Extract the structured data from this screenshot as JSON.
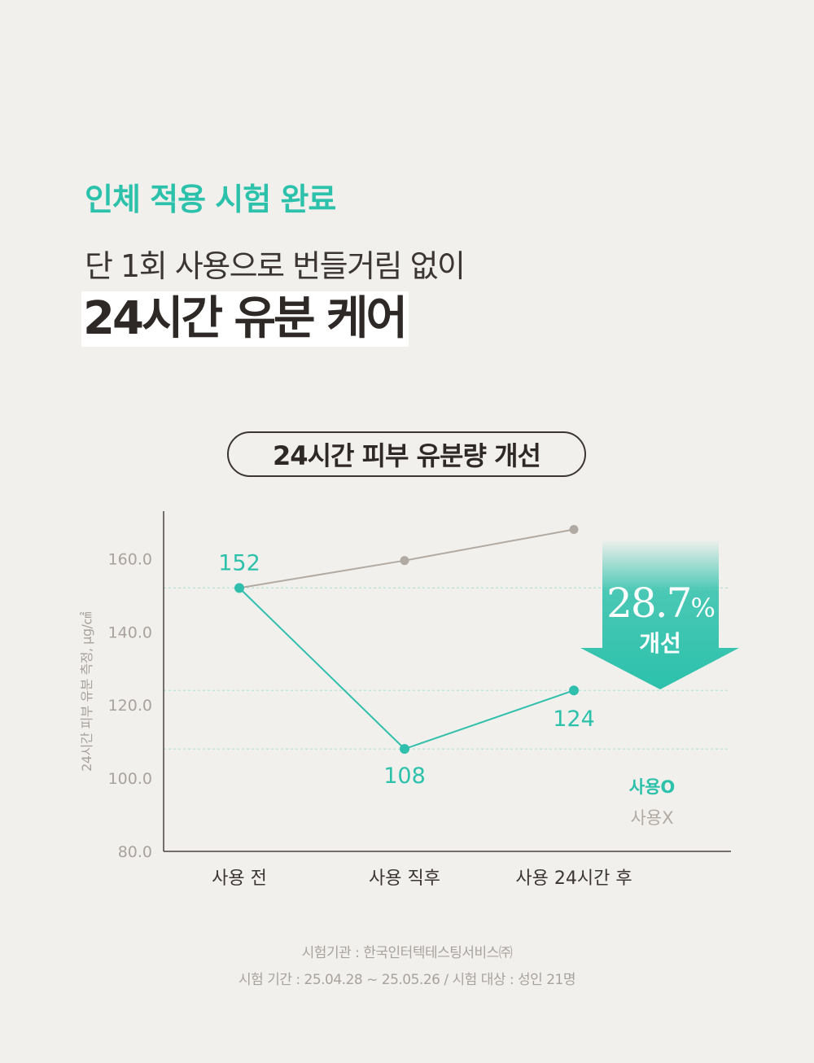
{
  "header": {
    "eyebrow": "인체 적용 시험 완료",
    "subtitle": "단 1회 사용으로 번들거림 없이",
    "headline": "24시간 유분 케어"
  },
  "chart_title": "24시간 피부 유분량 개선",
  "colors": {
    "accent": "#2cc1ab",
    "line_used": "#30bfac",
    "line_unused": "#b1aaa2",
    "axis": "#4a4440",
    "grid": "#b5e3db",
    "tick_text": "#a8a29d",
    "dark_text": "#2e2826"
  },
  "chart_data": {
    "type": "line",
    "title": "24시간 피부 유분량 개선",
    "categories": [
      "사용 전",
      "사용 직후",
      "사용 24시간 후"
    ],
    "ylabel": "24시간 피부 유분 측정, μg/㎠",
    "xlabel": "",
    "ylim": [
      80,
      173
    ],
    "yticks": [
      "160.0",
      "140.0",
      "120.0",
      "100.0",
      "80.0"
    ],
    "ytick_values": [
      160,
      140,
      120,
      100,
      80
    ],
    "grid": "dotted horizontal lines at the used-series values",
    "series": [
      {
        "name": "사용O",
        "values": [
          152,
          108,
          124
        ],
        "labels": [
          "152",
          "108",
          "124"
        ]
      },
      {
        "name": "사용X",
        "values": [
          152,
          159.5,
          168
        ]
      }
    ],
    "legend": [
      "사용O",
      "사용X"
    ],
    "legend_position": "bottom-right",
    "annotation": {
      "value": "28.7",
      "unit": "%",
      "label": "개선"
    }
  },
  "footer": {
    "line1": "시험기관 : 한국인터텍테스팅서비스㈜",
    "line2": "시험 기간 : 25.04.28 ~ 25.05.26 / 시험 대상 : 성인 21명"
  }
}
